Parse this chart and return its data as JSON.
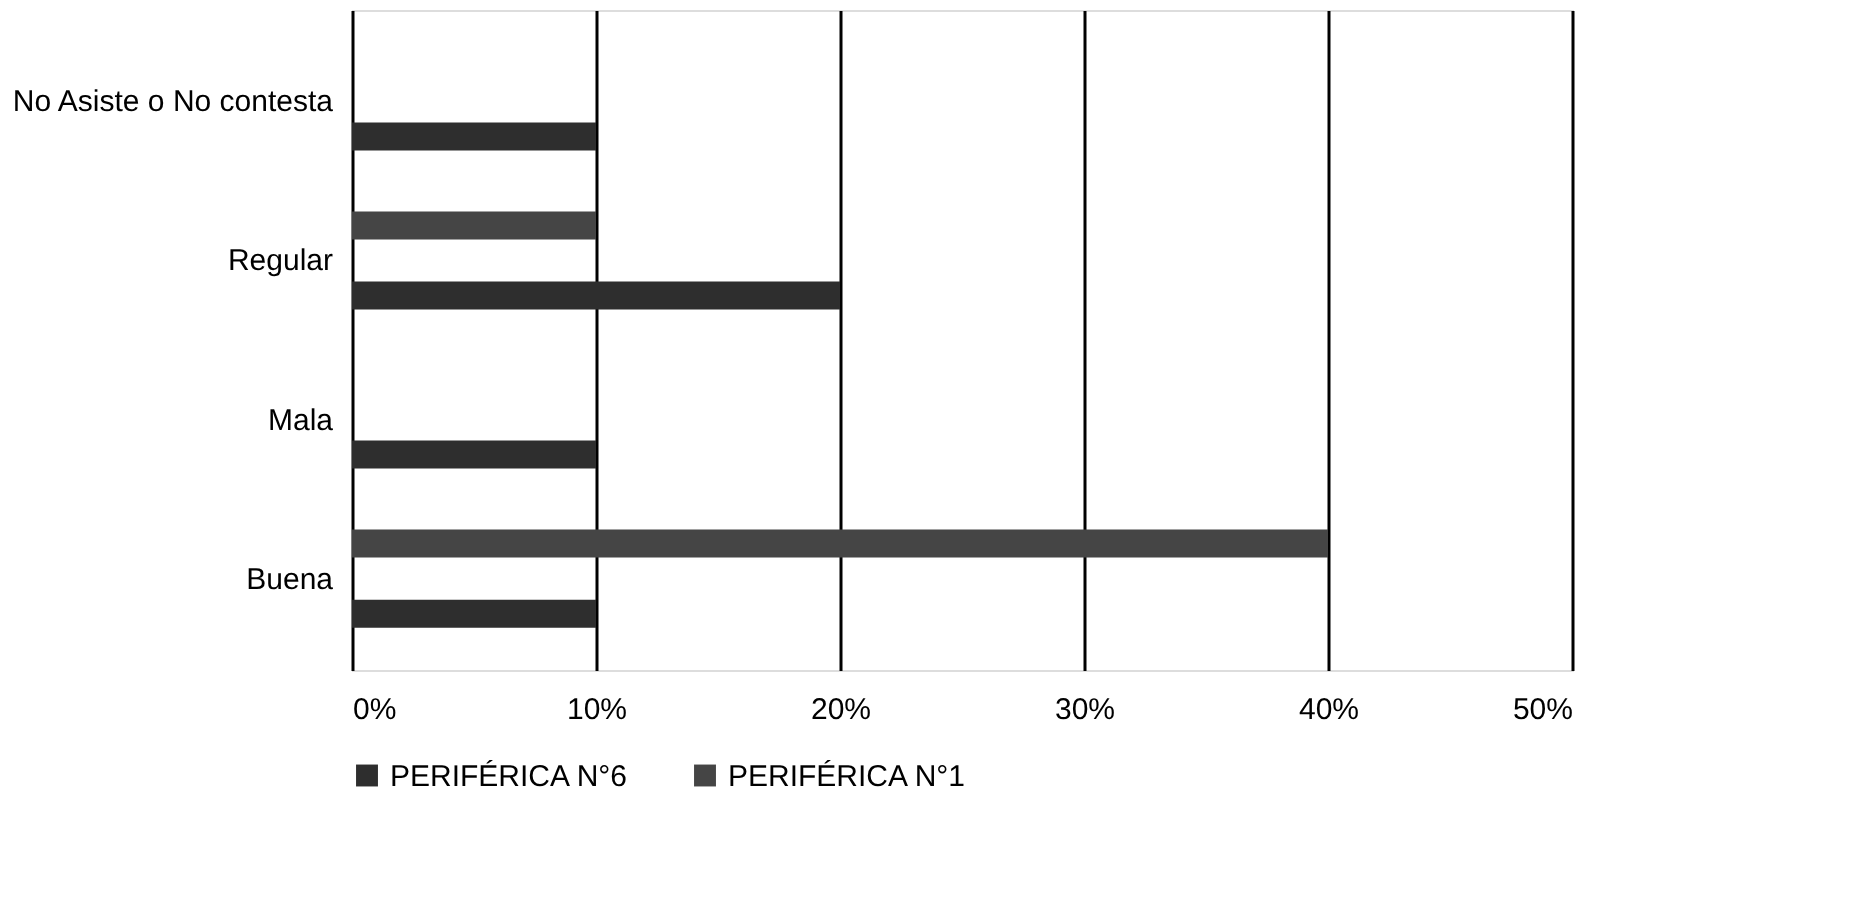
{
  "chart_data": {
    "type": "bar",
    "orientation": "horizontal",
    "categories": [
      "No Asiste o No contesta",
      "Regular",
      "Mala",
      "Buena"
    ],
    "series": [
      {
        "name": "PERIFÉRICA N°6",
        "color": "#2e2e2e",
        "values": [
          10,
          20,
          10,
          10
        ]
      },
      {
        "name": "PERIFÉRICA N°1",
        "color": "#454545",
        "values": [
          null,
          10,
          null,
          40
        ]
      }
    ],
    "xlim": [
      0,
      50
    ],
    "xticks": [
      {
        "value": 0,
        "label": "0%"
      },
      {
        "value": 10,
        "label": "10%"
      },
      {
        "value": 20,
        "label": "20%"
      },
      {
        "value": 30,
        "label": "30%"
      },
      {
        "value": 40,
        "label": "40%"
      },
      {
        "value": 50,
        "label": "50%"
      }
    ],
    "grid": "x",
    "legend": "bottom"
  }
}
